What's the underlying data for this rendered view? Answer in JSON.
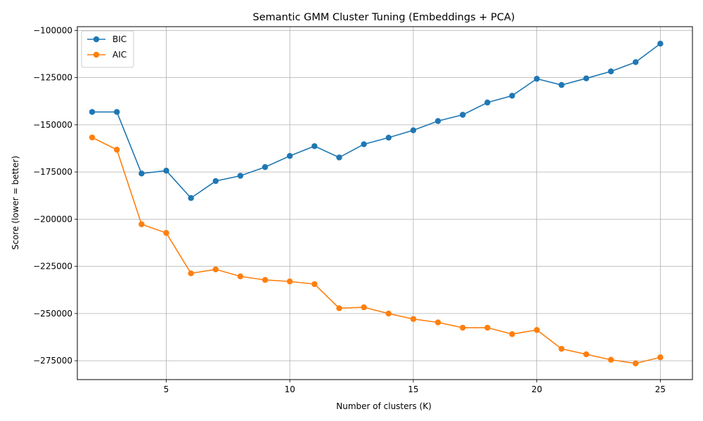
{
  "chart_data": {
    "type": "line",
    "title": "Semantic GMM Cluster Tuning (Embeddings + PCA)",
    "xlabel": "Number of clusters (K)",
    "ylabel": "Score (lower = better)",
    "x": [
      2,
      3,
      4,
      5,
      6,
      7,
      8,
      9,
      10,
      11,
      12,
      13,
      14,
      15,
      16,
      17,
      18,
      19,
      20,
      21,
      22,
      23,
      24,
      25
    ],
    "xlim": [
      1.4,
      26.3
    ],
    "ylim": [
      -285000,
      -98000
    ],
    "xticks": [
      5,
      10,
      15,
      20,
      25
    ],
    "yticks": [
      -275000,
      -250000,
      -225000,
      -200000,
      -175000,
      -150000,
      -125000,
      -100000
    ],
    "grid": true,
    "legend_position": "top-left",
    "series": [
      {
        "name": "BIC",
        "color": "#1f77b4",
        "values": [
          -143200,
          -143200,
          -175800,
          -174300,
          -188800,
          -179800,
          -177000,
          -172400,
          -166500,
          -161300,
          -167300,
          -160300,
          -156800,
          -152900,
          -148000,
          -144700,
          -138200,
          -134600,
          -125600,
          -128900,
          -125400,
          -121700,
          -116800,
          -107000
        ]
      },
      {
        "name": "AIC",
        "color": "#ff7f0e",
        "values": [
          -156700,
          -163200,
          -202700,
          -207300,
          -228700,
          -226600,
          -230300,
          -232200,
          -233000,
          -234400,
          -247200,
          -246700,
          -250000,
          -252900,
          -254700,
          -257500,
          -257500,
          -260900,
          -258700,
          -268700,
          -271600,
          -274500,
          -276400,
          -273200
        ]
      }
    ]
  }
}
